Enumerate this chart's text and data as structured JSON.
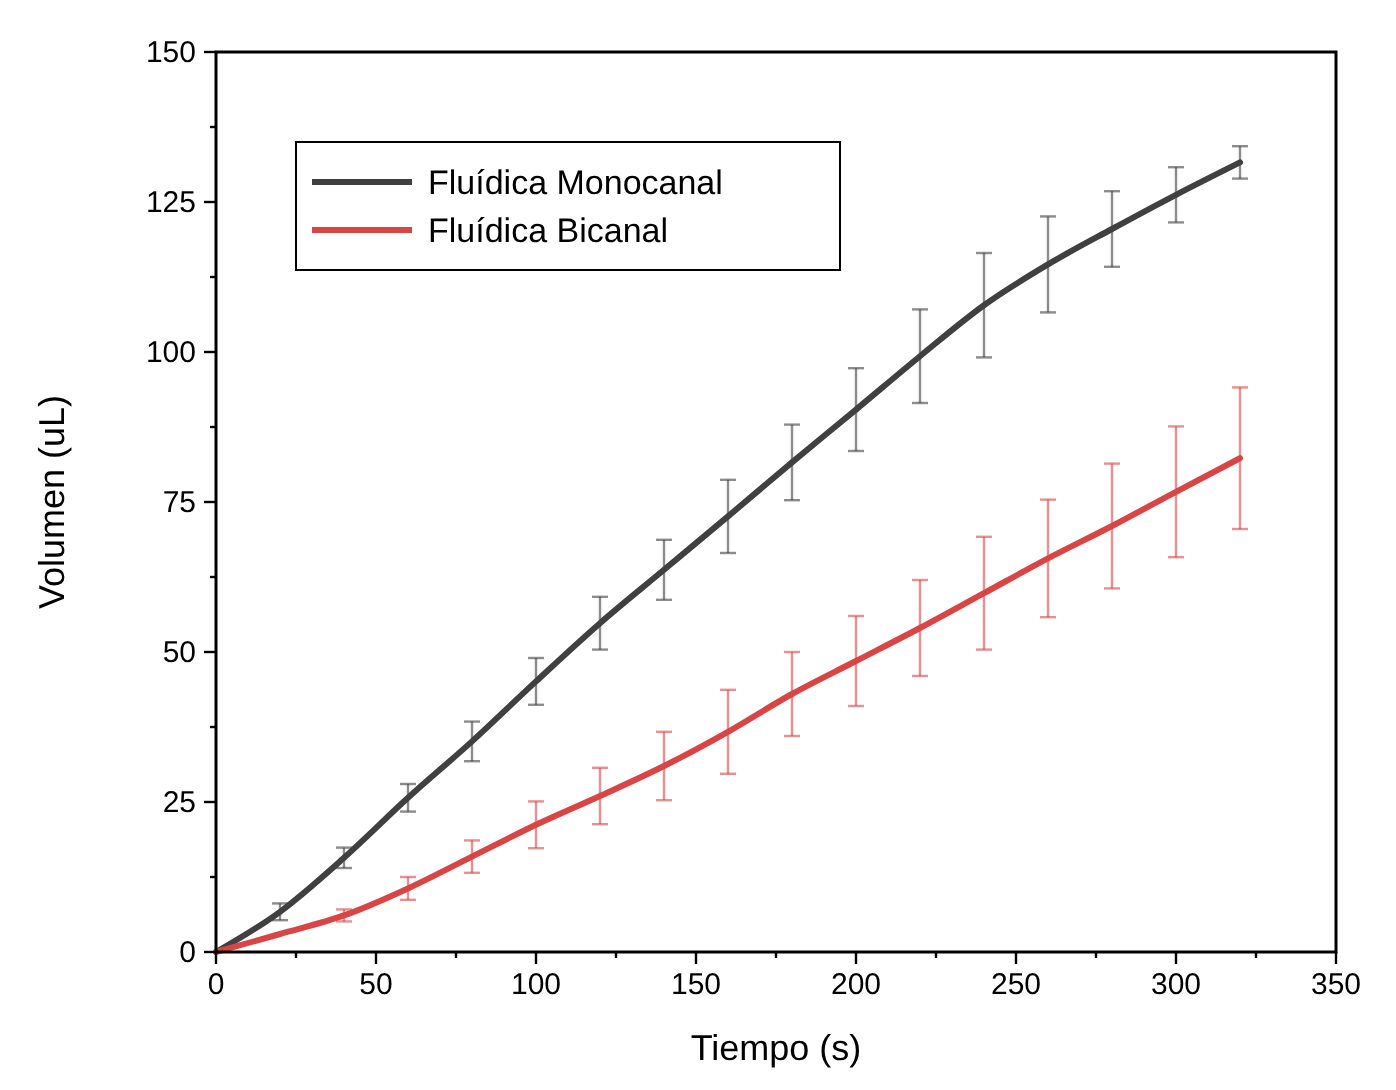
{
  "chart_data": {
    "type": "line",
    "xlabel": "Tiempo (s)",
    "ylabel": "Volumen (uL)",
    "x": [
      0,
      20,
      40,
      60,
      80,
      100,
      120,
      140,
      160,
      180,
      200,
      220,
      240,
      260,
      280,
      300,
      320
    ],
    "xlim": [
      0,
      350
    ],
    "ylim": [
      0,
      150
    ],
    "xticks": [
      0,
      {
        "value": 25,
        "label": null
      },
      50,
      {
        "value": 75,
        "label": null
      },
      100,
      {
        "value": 125,
        "label": null
      },
      150,
      {
        "value": 175,
        "label": null
      },
      200,
      {
        "value": 225,
        "label": null
      },
      250,
      {
        "value": 275,
        "label": null
      },
      300,
      {
        "value": 325,
        "label": null
      },
      350
    ],
    "yticks": [
      0,
      {
        "value": 12.5,
        "label": null
      },
      25,
      {
        "value": 37.5,
        "label": null
      },
      50,
      {
        "value": 62.5,
        "label": null
      },
      75,
      {
        "value": 87.5,
        "label": null
      },
      100,
      {
        "value": 112.5,
        "label": null
      },
      125,
      {
        "value": 137.5,
        "label": null
      },
      150
    ],
    "series": [
      {
        "name": "Fluídica Monocanal",
        "color": "#404040",
        "values": [
          0,
          6.7,
          15.7,
          25.7,
          35.1,
          45.1,
          54.8,
          63.7,
          72.6,
          81.6,
          90.4,
          99.3,
          107.8,
          114.6,
          120.5,
          126.2,
          131.6
        ],
        "errors": [
          null,
          1.4,
          1.7,
          2.3,
          3.3,
          3.9,
          4.4,
          5,
          6.1,
          6.3,
          6.9,
          7.8,
          8.7,
          8,
          6.3,
          4.6,
          2.7
        ]
      },
      {
        "name": "Fluídica Bicanal",
        "color": "#d94545",
        "values": [
          0,
          3,
          6.1,
          10.6,
          15.9,
          21.2,
          26,
          31,
          36.7,
          43,
          48.5,
          54,
          59.8,
          65.6,
          71,
          76.7,
          82.3
        ],
        "errors": [
          null,
          null,
          1,
          1.9,
          2.7,
          3.9,
          4.7,
          5.7,
          7,
          7,
          7.5,
          8,
          9.4,
          9.8,
          10.4,
          10.9,
          11.8
        ]
      }
    ],
    "legend": "top left",
    "grid": false,
    "marker": "none",
    "line_style": "solid"
  }
}
